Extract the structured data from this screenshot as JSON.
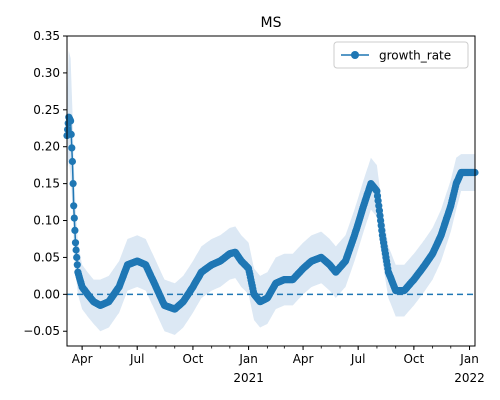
{
  "chart_data": {
    "type": "line",
    "title": "MS",
    "xlabel": "",
    "ylabel": "",
    "ylim": [
      -0.07,
      0.35
    ],
    "xlim": [
      "2020-03-07",
      "2022-01-10"
    ],
    "yticks": [
      -0.05,
      0.0,
      0.05,
      0.1,
      0.15,
      0.2,
      0.25,
      0.3,
      0.35
    ],
    "ytick_labels": [
      "−0.05",
      "0.00",
      "0.05",
      "0.10",
      "0.15",
      "0.20",
      "0.25",
      "0.30",
      "0.35"
    ],
    "xticks": [
      {
        "date": "2020-04-01",
        "label": "Apr",
        "sublabel": ""
      },
      {
        "date": "2020-07-01",
        "label": "Jul",
        "sublabel": ""
      },
      {
        "date": "2020-10-01",
        "label": "Oct",
        "sublabel": ""
      },
      {
        "date": "2021-01-01",
        "label": "Jan",
        "sublabel": "2021"
      },
      {
        "date": "2021-04-01",
        "label": "Apr",
        "sublabel": ""
      },
      {
        "date": "2021-07-01",
        "label": "Jul",
        "sublabel": ""
      },
      {
        "date": "2021-10-01",
        "label": "Oct",
        "sublabel": ""
      },
      {
        "date": "2022-01-01",
        "label": "Jan",
        "sublabel": "2022"
      }
    ],
    "reference_line": {
      "y": 0.0,
      "style": "dashed",
      "color": "#1f77b4"
    },
    "grid": false,
    "legend": {
      "position": "top-right"
    },
    "series": [
      {
        "name": "growth_rate",
        "color": "#1f77b4",
        "marker": "circle",
        "band_color": "#dce8f4",
        "points": [
          {
            "x": "2020-03-07",
            "y": 0.215,
            "lo": 0.17,
            "hi": 0.26
          },
          {
            "x": "2020-03-10",
            "y": 0.24,
            "lo": 0.18,
            "hi": 0.33
          },
          {
            "x": "2020-03-13",
            "y": 0.235,
            "lo": 0.16,
            "hi": 0.32
          },
          {
            "x": "2020-03-16",
            "y": 0.18,
            "lo": 0.12,
            "hi": 0.25
          },
          {
            "x": "2020-03-18",
            "y": 0.12,
            "lo": 0.07,
            "hi": 0.18
          },
          {
            "x": "2020-03-21",
            "y": 0.07,
            "lo": 0.03,
            "hi": 0.12
          },
          {
            "x": "2020-03-25",
            "y": 0.03,
            "lo": 0.0,
            "hi": 0.07
          },
          {
            "x": "2020-04-01",
            "y": 0.01,
            "lo": -0.02,
            "hi": 0.04
          },
          {
            "x": "2020-04-10",
            "y": 0.0,
            "lo": -0.03,
            "hi": 0.03
          },
          {
            "x": "2020-04-20",
            "y": -0.01,
            "lo": -0.04,
            "hi": 0.02
          },
          {
            "x": "2020-05-01",
            "y": -0.015,
            "lo": -0.05,
            "hi": 0.02
          },
          {
            "x": "2020-05-15",
            "y": -0.01,
            "lo": -0.045,
            "hi": 0.025
          },
          {
            "x": "2020-06-01",
            "y": 0.01,
            "lo": -0.025,
            "hi": 0.045
          },
          {
            "x": "2020-06-15",
            "y": 0.04,
            "lo": 0.005,
            "hi": 0.075
          },
          {
            "x": "2020-07-01",
            "y": 0.045,
            "lo": 0.01,
            "hi": 0.08
          },
          {
            "x": "2020-07-15",
            "y": 0.04,
            "lo": 0.005,
            "hi": 0.075
          },
          {
            "x": "2020-08-01",
            "y": 0.01,
            "lo": -0.025,
            "hi": 0.045
          },
          {
            "x": "2020-08-15",
            "y": -0.015,
            "lo": -0.05,
            "hi": 0.02
          },
          {
            "x": "2020-09-01",
            "y": -0.02,
            "lo": -0.055,
            "hi": 0.015
          },
          {
            "x": "2020-09-15",
            "y": -0.01,
            "lo": -0.045,
            "hi": 0.025
          },
          {
            "x": "2020-10-01",
            "y": 0.01,
            "lo": -0.025,
            "hi": 0.045
          },
          {
            "x": "2020-10-15",
            "y": 0.03,
            "lo": -0.005,
            "hi": 0.065
          },
          {
            "x": "2020-11-01",
            "y": 0.04,
            "lo": 0.005,
            "hi": 0.075
          },
          {
            "x": "2020-11-15",
            "y": 0.045,
            "lo": 0.01,
            "hi": 0.08
          },
          {
            "x": "2020-12-01",
            "y": 0.055,
            "lo": 0.02,
            "hi": 0.09
          },
          {
            "x": "2020-12-10",
            "y": 0.057,
            "lo": 0.022,
            "hi": 0.092
          },
          {
            "x": "2020-12-20",
            "y": 0.045,
            "lo": 0.01,
            "hi": 0.08
          },
          {
            "x": "2021-01-01",
            "y": 0.035,
            "lo": 0.0,
            "hi": 0.07
          },
          {
            "x": "2021-01-10",
            "y": 0.0,
            "lo": -0.035,
            "hi": 0.035
          },
          {
            "x": "2021-01-20",
            "y": -0.01,
            "lo": -0.045,
            "hi": 0.025
          },
          {
            "x": "2021-02-01",
            "y": -0.005,
            "lo": -0.04,
            "hi": 0.03
          },
          {
            "x": "2021-02-15",
            "y": 0.015,
            "lo": -0.02,
            "hi": 0.05
          },
          {
            "x": "2021-03-01",
            "y": 0.02,
            "lo": -0.015,
            "hi": 0.055
          },
          {
            "x": "2021-03-15",
            "y": 0.02,
            "lo": -0.015,
            "hi": 0.055
          },
          {
            "x": "2021-04-01",
            "y": 0.035,
            "lo": 0.0,
            "hi": 0.07
          },
          {
            "x": "2021-04-15",
            "y": 0.045,
            "lo": 0.01,
            "hi": 0.08
          },
          {
            "x": "2021-05-01",
            "y": 0.05,
            "lo": 0.015,
            "hi": 0.085
          },
          {
            "x": "2021-05-15",
            "y": 0.04,
            "lo": 0.005,
            "hi": 0.075
          },
          {
            "x": "2021-05-25",
            "y": 0.03,
            "lo": -0.005,
            "hi": 0.065
          },
          {
            "x": "2021-06-10",
            "y": 0.045,
            "lo": 0.01,
            "hi": 0.08
          },
          {
            "x": "2021-06-25",
            "y": 0.08,
            "lo": 0.045,
            "hi": 0.115
          },
          {
            "x": "2021-07-10",
            "y": 0.12,
            "lo": 0.085,
            "hi": 0.155
          },
          {
            "x": "2021-07-22",
            "y": 0.15,
            "lo": 0.115,
            "hi": 0.185
          },
          {
            "x": "2021-08-01",
            "y": 0.14,
            "lo": 0.105,
            "hi": 0.175
          },
          {
            "x": "2021-08-10",
            "y": 0.08,
            "lo": 0.045,
            "hi": 0.115
          },
          {
            "x": "2021-08-20",
            "y": 0.03,
            "lo": -0.005,
            "hi": 0.065
          },
          {
            "x": "2021-09-01",
            "y": 0.005,
            "lo": -0.03,
            "hi": 0.04
          },
          {
            "x": "2021-09-15",
            "y": 0.005,
            "lo": -0.03,
            "hi": 0.04
          },
          {
            "x": "2021-10-01",
            "y": 0.02,
            "lo": -0.015,
            "hi": 0.055
          },
          {
            "x": "2021-10-15",
            "y": 0.035,
            "lo": 0.0,
            "hi": 0.07
          },
          {
            "x": "2021-11-01",
            "y": 0.055,
            "lo": 0.02,
            "hi": 0.09
          },
          {
            "x": "2021-11-15",
            "y": 0.08,
            "lo": 0.045,
            "hi": 0.115
          },
          {
            "x": "2021-12-01",
            "y": 0.12,
            "lo": 0.085,
            "hi": 0.155
          },
          {
            "x": "2021-12-10",
            "y": 0.15,
            "lo": 0.115,
            "hi": 0.185
          },
          {
            "x": "2021-12-18",
            "y": 0.165,
            "lo": 0.14,
            "hi": 0.19
          },
          {
            "x": "2022-01-10",
            "y": 0.165,
            "lo": 0.14,
            "hi": 0.19
          }
        ]
      }
    ]
  }
}
